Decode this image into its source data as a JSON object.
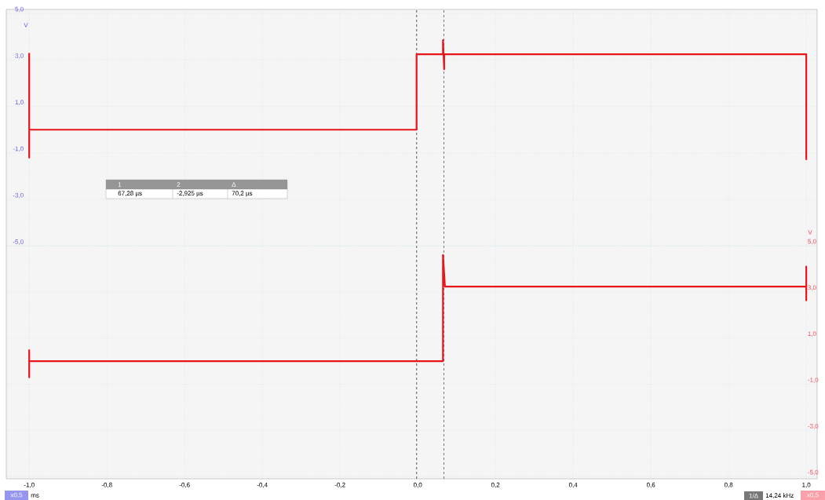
{
  "chart_data": {
    "type": "line",
    "xlabel": "ms",
    "ylabel": "V",
    "y2label": "V",
    "x": [
      -1.0,
      -1.0,
      -1.0,
      -0.003,
      -0.003,
      0.065,
      0.065,
      0.068,
      0.068,
      1.0,
      1.0
    ],
    "series": [
      {
        "color": "#e8141a",
        "values": [
          3.3,
          -1.2,
          0,
          0,
          3.24,
          3.24,
          3.85,
          2.6,
          3.24,
          3.24,
          -1.3
        ]
      },
      {
        "color": "#e8141a",
        "axis": "y2",
        "x": [
          -1.0,
          -1.0,
          -1.0,
          0.065,
          0.065,
          0.07,
          1.0,
          1.0,
          1.0
        ],
        "values": [
          0.5,
          -0.7,
          0,
          0,
          4.6,
          3.23,
          3.23,
          4.1,
          2.6
        ]
      }
    ],
    "xlim": [
      -1.059,
      1.028
    ],
    "xticks": [
      {
        "value": -1.0,
        "label": "-1,0"
      },
      {
        "value": -0.8,
        "label": "-0,8"
      },
      {
        "value": -0.6,
        "label": "-0,6"
      },
      {
        "value": -0.4,
        "label": "-0,4"
      },
      {
        "value": -0.2,
        "label": "-0,2"
      },
      {
        "value": 0.0,
        "label": "0,0"
      },
      {
        "value": 0.2,
        "label": "0,2"
      },
      {
        "value": 0.4,
        "label": "0,4"
      },
      {
        "value": 0.6,
        "label": "0,6"
      },
      {
        "value": 0.8,
        "label": "0,8"
      },
      {
        "value": 1.0,
        "label": "1,0"
      }
    ],
    "ylim": [
      -15.0,
      5.17
    ],
    "yticks": [
      {
        "value": 5,
        "label": "5,0"
      },
      {
        "value": 3,
        "label": "3,0"
      },
      {
        "value": 1,
        "label": "1,0"
      },
      {
        "value": -1,
        "label": "-1,0"
      },
      {
        "value": -3,
        "label": "-3,0"
      },
      {
        "value": -5,
        "label": "-5,0"
      }
    ],
    "y2lim": [
      -5.1,
      15.24
    ],
    "y2ticks": [
      {
        "value": 5,
        "label": "5,0"
      },
      {
        "value": 3,
        "label": "3,0"
      },
      {
        "value": 1,
        "label": "1,0"
      },
      {
        "value": -1,
        "label": "-1,0"
      },
      {
        "value": -3,
        "label": "-3,0"
      },
      {
        "value": -5,
        "label": "-5,0"
      }
    ],
    "grid": true,
    "ref_lines": [
      {
        "axis": "x",
        "value": -0.002925,
        "line_style": "dashed",
        "color": "#333333"
      },
      {
        "axis": "x",
        "value": 0.06728,
        "line_style": "dashed",
        "color": "#555555"
      }
    ],
    "annotations": [
      "1",
      "2",
      "Δ",
      "67,28 µs",
      "-2,925 µs",
      "70,2 µs",
      "x0,5",
      "1/Δ",
      "14,24 kHz",
      "x0,5"
    ]
  }
}
